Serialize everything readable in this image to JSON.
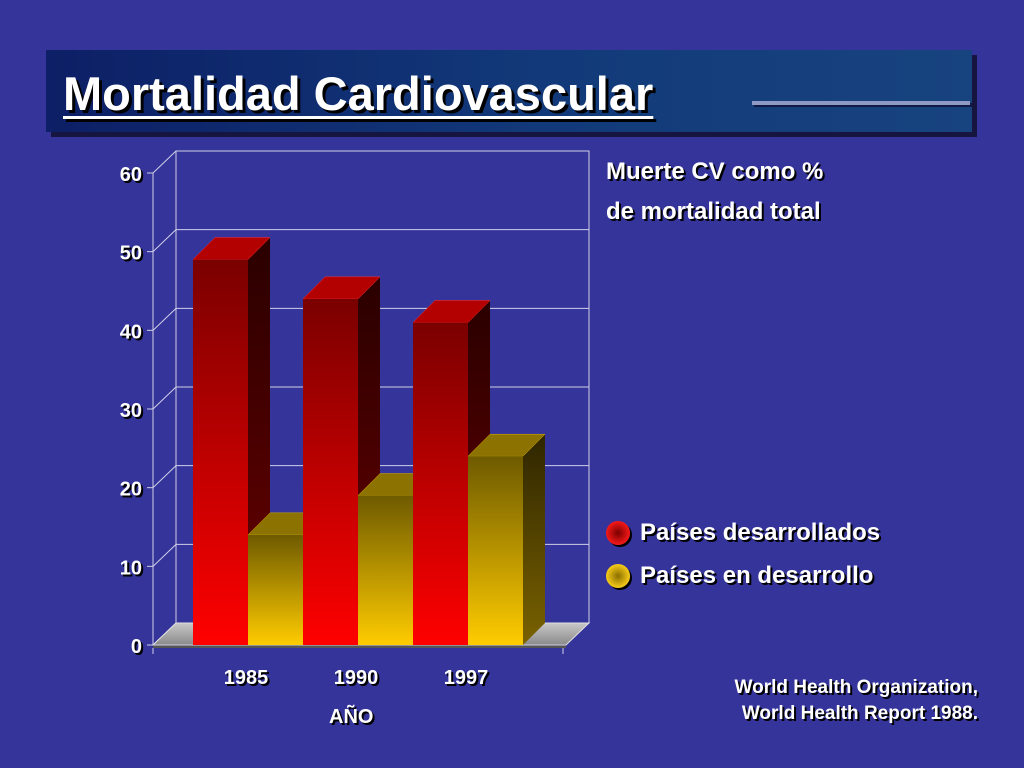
{
  "slide": {
    "title": "Mortalidad Cardiovascular"
  },
  "colors": {
    "background": "#34349a",
    "developed_series": "#ff0000",
    "developing_series": "#f5c400"
  },
  "chart_data": {
    "type": "bar",
    "bar_style": "3d-clustered",
    "title": "Muerte CV como % de mortalidad total",
    "title_lines": [
      "Muerte CV como %",
      "de mortalidad total"
    ],
    "xlabel": "AÑO",
    "ylabel": "",
    "categories": [
      "1985",
      "1990",
      "1997"
    ],
    "series": [
      {
        "name": "Países desarrollados",
        "values": [
          49,
          44,
          41
        ],
        "color": "#ff0000"
      },
      {
        "name": "Países en desarrollo",
        "values": [
          14,
          19,
          24
        ],
        "color": "#f5c400"
      }
    ],
    "ylim": [
      0,
      60
    ],
    "yticks": [
      "0",
      "10",
      "20",
      "30",
      "40",
      "50",
      "60"
    ],
    "grid": true,
    "legend_position": "right"
  },
  "source_lines": [
    "World Health Organization,",
    "World Health Report 1988."
  ]
}
